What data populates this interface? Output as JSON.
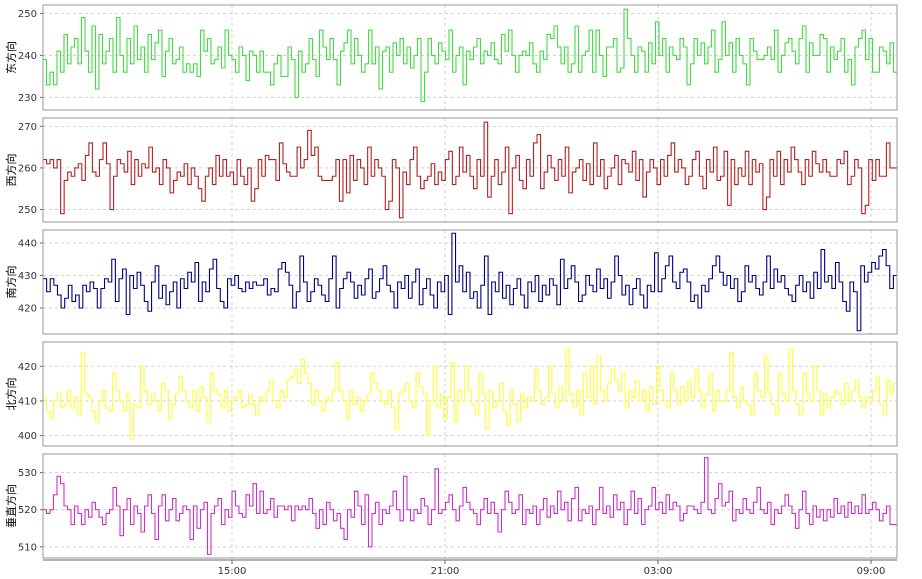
{
  "chart_data": {
    "type": "line",
    "step": true,
    "x_ticks": [
      "15:00",
      "21:00",
      "03:00",
      "09:00"
    ],
    "grid": true,
    "panels": [
      {
        "name": "东方向",
        "color": "#44dd44",
        "ylim": [
          227,
          252
        ],
        "yticks": [
          230,
          240,
          250
        ],
        "values": [
          239,
          233,
          236,
          233,
          241,
          236,
          245,
          238,
          242,
          244,
          238,
          249,
          241,
          236,
          247,
          232,
          245,
          238,
          241,
          244,
          236,
          249,
          240,
          236,
          244,
          238,
          247,
          239,
          242,
          236,
          245,
          239,
          243,
          246,
          235,
          241,
          244,
          238,
          239,
          242,
          236,
          238,
          236,
          238,
          235,
          246,
          241,
          244,
          238,
          239,
          242,
          237,
          246,
          240,
          239,
          236,
          242,
          240,
          234,
          241,
          240,
          236,
          241,
          236,
          236,
          233,
          238,
          240,
          235,
          235,
          242,
          239,
          230,
          241,
          236,
          238,
          244,
          239,
          235,
          246,
          242,
          239,
          244,
          239,
          233,
          241,
          243,
          246,
          238,
          244,
          240,
          236,
          238,
          246,
          238,
          242,
          232,
          241,
          242,
          236,
          243,
          240,
          244,
          238,
          242,
          237,
          240,
          244,
          229,
          236,
          244,
          240,
          238,
          243,
          241,
          239,
          246,
          236,
          240,
          242,
          233,
          241,
          239,
          242,
          244,
          238,
          241,
          240,
          243,
          239,
          238,
          245,
          241,
          246,
          240,
          236,
          240,
          241,
          240,
          243,
          238,
          236,
          241,
          239,
          245,
          244,
          247,
          242,
          238,
          242,
          236,
          238,
          247,
          236,
          240,
          241,
          246,
          236,
          246,
          240,
          235,
          242,
          242,
          244,
          236,
          237,
          251,
          244,
          240,
          236,
          242,
          241,
          236,
          243,
          238,
          248,
          240,
          244,
          236,
          242,
          240,
          239,
          244,
          242,
          233,
          238,
          244,
          240,
          243,
          238,
          242,
          246,
          236,
          239,
          248,
          240,
          243,
          236,
          244,
          240,
          238,
          233,
          244,
          241,
          239,
          239,
          240,
          242,
          239,
          246,
          236,
          240,
          243,
          244,
          241,
          238,
          244,
          247,
          236,
          243,
          240,
          240,
          245,
          244,
          236,
          242,
          239,
          241,
          244,
          236,
          239,
          233,
          242,
          244,
          246,
          239,
          244,
          236,
          236,
          242,
          241,
          238,
          243,
          236
        ]
      },
      {
        "name": "西方向",
        "color": "#b22222",
        "ylim": [
          247,
          272
        ],
        "yticks": [
          250,
          260,
          270
        ],
        "values": [
          262,
          261,
          262,
          260,
          262,
          249,
          257,
          259,
          258,
          260,
          261,
          257,
          263,
          266,
          259,
          258,
          262,
          266,
          261,
          250,
          258,
          262,
          261,
          259,
          264,
          256,
          262,
          258,
          261,
          260,
          265,
          259,
          260,
          256,
          262,
          260,
          254,
          257,
          259,
          258,
          261,
          256,
          260,
          258,
          255,
          252,
          258,
          260,
          256,
          263,
          258,
          262,
          258,
          259,
          256,
          262,
          258,
          256,
          260,
          252,
          255,
          262,
          258,
          263,
          262,
          262,
          257,
          266,
          261,
          259,
          258,
          258,
          265,
          260,
          262,
          269,
          263,
          265,
          258,
          257,
          257,
          257,
          258,
          262,
          252,
          262,
          254,
          263,
          257,
          262,
          260,
          256,
          265,
          258,
          262,
          260,
          258,
          250,
          252,
          262,
          260,
          248,
          259,
          256,
          262,
          265,
          258,
          255,
          257,
          258,
          261,
          256,
          259,
          257,
          262,
          264,
          256,
          258,
          265,
          259,
          263,
          258,
          255,
          262,
          258,
          271,
          253,
          258,
          262,
          256,
          259,
          265,
          249,
          260,
          263,
          257,
          255,
          262,
          258,
          266,
          268,
          255,
          259,
          263,
          260,
          257,
          262,
          258,
          265,
          254,
          259,
          260,
          262,
          257,
          261,
          256,
          266,
          258,
          262,
          255,
          258,
          260,
          263,
          256,
          262,
          261,
          259,
          264,
          257,
          262,
          253,
          259,
          262,
          260,
          256,
          262,
          258,
          263,
          266,
          259,
          262,
          260,
          256,
          258,
          262,
          264,
          258,
          255,
          262,
          259,
          265,
          257,
          258,
          264,
          251,
          262,
          256,
          260,
          258,
          264,
          256,
          262,
          259,
          261,
          250,
          253,
          262,
          258,
          264,
          256,
          262,
          259,
          265,
          262,
          259,
          256,
          262,
          258,
          264,
          261,
          259,
          262,
          259,
          258,
          258,
          262,
          261,
          264,
          256,
          258,
          262,
          260,
          249,
          251,
          262,
          257,
          262,
          258,
          258,
          266,
          260,
          260
        ]
      },
      {
        "name": "南方向",
        "color": "#000080",
        "ylim": [
          412,
          444
        ],
        "yticks": [
          420,
          430,
          440
        ],
        "values": [
          429,
          425,
          429,
          427,
          424,
          420,
          423,
          427,
          422,
          424,
          420,
          427,
          425,
          428,
          426,
          420,
          426,
          429,
          428,
          435,
          422,
          429,
          432,
          418,
          430,
          426,
          431,
          427,
          422,
          419,
          428,
          433,
          423,
          427,
          421,
          425,
          428,
          420,
          429,
          426,
          431,
          428,
          434,
          422,
          428,
          425,
          432,
          435,
          426,
          422,
          420,
          429,
          427,
          430,
          426,
          425,
          428,
          426,
          428,
          427,
          427,
          429,
          424,
          426,
          425,
          432,
          434,
          431,
          427,
          420,
          425,
          436,
          428,
          422,
          425,
          429,
          427,
          424,
          422,
          429,
          436,
          420,
          426,
          429,
          431,
          428,
          423,
          427,
          424,
          429,
          432,
          423,
          425,
          429,
          433,
          427,
          425,
          420,
          428,
          426,
          430,
          423,
          428,
          432,
          421,
          426,
          429,
          424,
          420,
          428,
          425,
          430,
          418,
          443,
          428,
          433,
          425,
          431,
          423,
          425,
          420,
          427,
          436,
          418,
          428,
          425,
          431,
          423,
          427,
          421,
          426,
          429,
          424,
          420,
          428,
          425,
          430,
          422,
          427,
          424,
          429,
          427,
          421,
          435,
          426,
          429,
          433,
          428,
          422,
          424,
          430,
          427,
          425,
          432,
          426,
          429,
          423,
          428,
          436,
          430,
          424,
          427,
          421,
          426,
          429,
          424,
          420,
          427,
          425,
          437,
          425,
          429,
          433,
          436,
          428,
          426,
          431,
          432,
          428,
          422,
          424,
          420,
          427,
          425,
          429,
          433,
          436,
          431,
          427,
          430,
          426,
          429,
          422,
          425,
          433,
          428,
          430,
          426,
          424,
          428,
          436,
          426,
          432,
          428,
          430,
          426,
          424,
          422,
          427,
          430,
          425,
          428,
          423,
          431,
          426,
          438,
          428,
          430,
          426,
          434,
          428,
          422,
          419,
          428,
          425,
          413,
          433,
          428,
          431,
          434,
          432,
          436,
          438,
          433,
          426,
          430
        ]
      },
      {
        "name": "北方向",
        "color": "#ffff33",
        "ylim": [
          397,
          427
        ],
        "yticks": [
          400,
          410,
          420
        ],
        "values": [
          411,
          407,
          405,
          410,
          412,
          408,
          409,
          413,
          408,
          411,
          406,
          424,
          412,
          411,
          407,
          404,
          410,
          413,
          408,
          407,
          418,
          413,
          410,
          407,
          412,
          399,
          409,
          408,
          420,
          413,
          409,
          412,
          410,
          407,
          415,
          413,
          405,
          409,
          412,
          417,
          413,
          410,
          408,
          413,
          407,
          414,
          411,
          404,
          418,
          413,
          412,
          408,
          413,
          407,
          410,
          411,
          413,
          408,
          409,
          412,
          409,
          406,
          411,
          410,
          413,
          416,
          410,
          408,
          413,
          411,
          416,
          417,
          419,
          415,
          422,
          418,
          415,
          409,
          413,
          410,
          407,
          411,
          410,
          413,
          421,
          413,
          410,
          405,
          413,
          409,
          411,
          407,
          410,
          412,
          418,
          415,
          413,
          410,
          409,
          413,
          408,
          402,
          412,
          413,
          415,
          410,
          408,
          418,
          414,
          412,
          400,
          410,
          420,
          408,
          412,
          405,
          411,
          421,
          404,
          413,
          410,
          420,
          413,
          409,
          406,
          418,
          412,
          402,
          413,
          408,
          410,
          415,
          407,
          403,
          413,
          409,
          404,
          412,
          408,
          411,
          410,
          419,
          413,
          409,
          411,
          420,
          412,
          408,
          414,
          410,
          425,
          412,
          408,
          413,
          406,
          418,
          411,
          420,
          409,
          423,
          413,
          410,
          415,
          419,
          416,
          413,
          418,
          408,
          413,
          411,
          416,
          410,
          413,
          407,
          414,
          409,
          420,
          413,
          410,
          408,
          418,
          413,
          409,
          414,
          410,
          416,
          411,
          419,
          413,
          408,
          412,
          418,
          407,
          413,
          410,
          410,
          413,
          424,
          411,
          408,
          414,
          410,
          409,
          406,
          418,
          413,
          411,
          423,
          412,
          409,
          406,
          418,
          412,
          410,
          425,
          413,
          409,
          406,
          418,
          412,
          410,
          420,
          413,
          406,
          412,
          408,
          411,
          413,
          412,
          409,
          415,
          410,
          413,
          416,
          411,
          408,
          411,
          410,
          413,
          417,
          409,
          406,
          416,
          412,
          415
        ]
      },
      {
        "name": "垂直方向",
        "color": "#cc33cc",
        "ylim": [
          507,
          535
        ],
        "yticks": [
          510,
          520,
          530
        ],
        "values": [
          520,
          519,
          520,
          524,
          529,
          527,
          521,
          520,
          516,
          521,
          519,
          516,
          520,
          518,
          522,
          520,
          518,
          516,
          519,
          520,
          526,
          521,
          513,
          520,
          523,
          516,
          521,
          519,
          514,
          521,
          524,
          519,
          512,
          521,
          524,
          517,
          520,
          523,
          517,
          519,
          521,
          520,
          512,
          521,
          515,
          520,
          522,
          508,
          519,
          521,
          523,
          516,
          520,
          518,
          525,
          521,
          519,
          518,
          524,
          521,
          527,
          519,
          525,
          519,
          520,
          523,
          518,
          521,
          521,
          520,
          521,
          517,
          521,
          520,
          521,
          520,
          523,
          519,
          515,
          520,
          516,
          522,
          520,
          517,
          519,
          515,
          512,
          520,
          518,
          525,
          521,
          516,
          524,
          510,
          519,
          522,
          516,
          520,
          519,
          521,
          525,
          520,
          517,
          529,
          520,
          517,
          520,
          519,
          523,
          521,
          516,
          520,
          531,
          519,
          520,
          522,
          524,
          520,
          517,
          521,
          526,
          522,
          520,
          519,
          516,
          520,
          523,
          519,
          522,
          519,
          514,
          520,
          525,
          522,
          519,
          520,
          524,
          516,
          520,
          519,
          521,
          516,
          520,
          523,
          518,
          521,
          519,
          525,
          520,
          522,
          517,
          523,
          526,
          517,
          520,
          519,
          521,
          516,
          520,
          526,
          519,
          521,
          518,
          524,
          520,
          522,
          516,
          520,
          525,
          519,
          523,
          516,
          520,
          521,
          526,
          520,
          522,
          519,
          524,
          520,
          522,
          521,
          517,
          519,
          521,
          521,
          520,
          519,
          522,
          534,
          520,
          519,
          523,
          527,
          521,
          522,
          525,
          517,
          520,
          519,
          523,
          520,
          519,
          522,
          526,
          520,
          519,
          522,
          516,
          520,
          519,
          521,
          524,
          521,
          519,
          515,
          520,
          525,
          519,
          516,
          521,
          518,
          520,
          517,
          520,
          518,
          523,
          519,
          521,
          518,
          522,
          519,
          521,
          519,
          524,
          519,
          520,
          522,
          520,
          517,
          519,
          521,
          516,
          516
        ]
      }
    ]
  }
}
